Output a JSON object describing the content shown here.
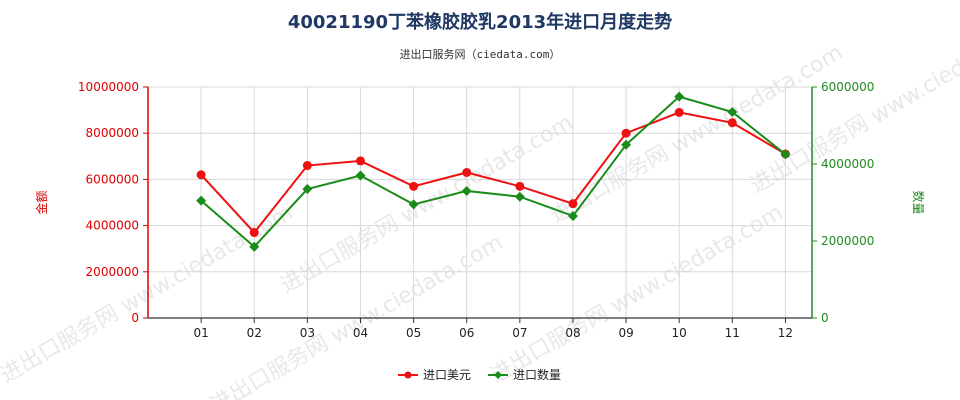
{
  "title": "40021190丁苯橡胶胶乳2013年进口月度走势",
  "subtitle": "进出口服务网（ciedata.com）",
  "watermark": "进出口服务网 www.ciedata.com",
  "chart_data": {
    "type": "line",
    "title": "40021190丁苯橡胶胶乳2013年进口月度走势",
    "subtitle": "进出口服务网（ciedata.com）",
    "categories": [
      "01",
      "02",
      "03",
      "04",
      "05",
      "06",
      "07",
      "08",
      "09",
      "10",
      "11",
      "12"
    ],
    "y_left": {
      "label": "金额",
      "range": [
        0,
        10000000
      ],
      "ticks": [
        0,
        2000000,
        4000000,
        6000000,
        8000000,
        10000000
      ],
      "tick_labels": [
        "0",
        "2000000",
        "4000000",
        "6000000",
        "8000000",
        "10000000"
      ],
      "color": "#dd0000"
    },
    "y_right": {
      "label": "数量",
      "range": [
        0,
        6000000
      ],
      "ticks": [
        0,
        2000000,
        4000000,
        6000000
      ],
      "tick_labels": [
        "0",
        "2000000",
        "4000000",
        "6000000"
      ],
      "color": "#228b22"
    },
    "grid": true,
    "legend_position": "bottom",
    "series": [
      {
        "name": "进口美元",
        "axis": "left",
        "color": "#ee1111",
        "marker": "circle",
        "values": [
          6200000,
          3700000,
          6600000,
          6800000,
          5700000,
          6300000,
          5700000,
          4950000,
          8000000,
          8900000,
          8450000,
          7100000
        ]
      },
      {
        "name": "进口数量",
        "axis": "right",
        "color": "#1a8c1a",
        "marker": "diamond",
        "values": [
          3050000,
          1850000,
          3350000,
          3700000,
          2950000,
          3300000,
          3150000,
          2650000,
          4500000,
          5750000,
          5350000,
          4250000
        ]
      }
    ]
  }
}
